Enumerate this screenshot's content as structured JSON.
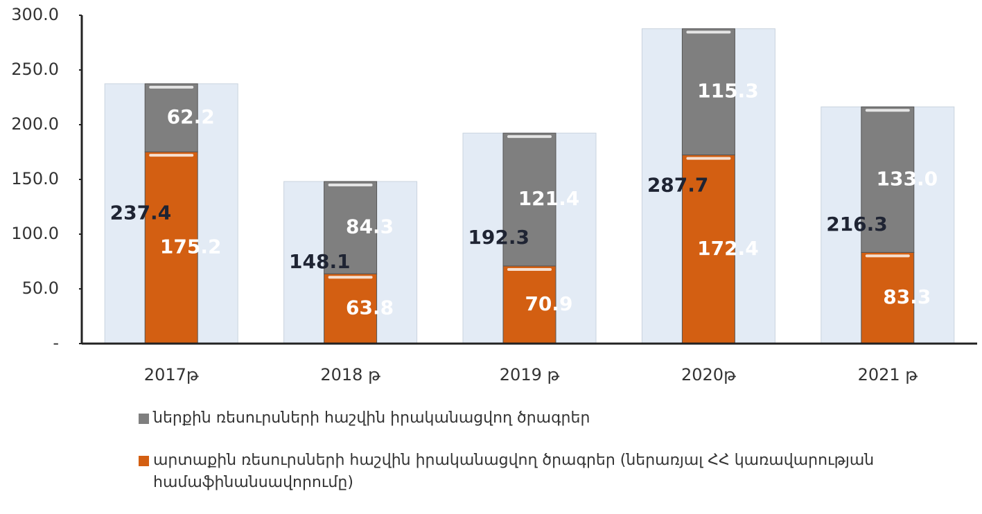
{
  "chart_data": {
    "type": "bar",
    "stacked": true,
    "categories": [
      "2017թ",
      "2018 թ",
      "2019 թ",
      "2020թ",
      "2021 թ"
    ],
    "series": [
      {
        "name": "ներքին ռեսուրսների հաշվին իրականացվող ծրագրեր",
        "color": "#7f7f7f",
        "values": [
          62.2,
          84.3,
          121.4,
          115.3,
          133.0
        ],
        "value_labels": [
          "62.2",
          "84.3",
          "121.4",
          "115.3",
          "133.0"
        ]
      },
      {
        "name": "արտաքին ռեսուրսների հաշվին իրականացվող ծրագրեր (ներառյալ ՀՀ կառավարության համաֆինանսավորումը)",
        "color": "#d35f12",
        "values": [
          175.2,
          63.8,
          70.9,
          172.4,
          83.3
        ],
        "value_labels": [
          "175.2",
          "63.8",
          "70.9",
          "172.4",
          "83.3"
        ]
      }
    ],
    "totals": [
      237.4,
      148.1,
      192.3,
      287.7,
      216.3
    ],
    "total_color": "#e3ebf5",
    "ylim": [
      0,
      300
    ],
    "yticks": [
      {
        "value": 0,
        "label": "-"
      },
      {
        "value": 50,
        "label": "50.0"
      },
      {
        "value": 100,
        "label": "100.0"
      },
      {
        "value": 150,
        "label": "150.0"
      },
      {
        "value": 200,
        "label": "200.0"
      },
      {
        "value": 250,
        "label": "250.0"
      },
      {
        "value": 300,
        "label": "300.0"
      }
    ],
    "legend": "bottom-left"
  }
}
